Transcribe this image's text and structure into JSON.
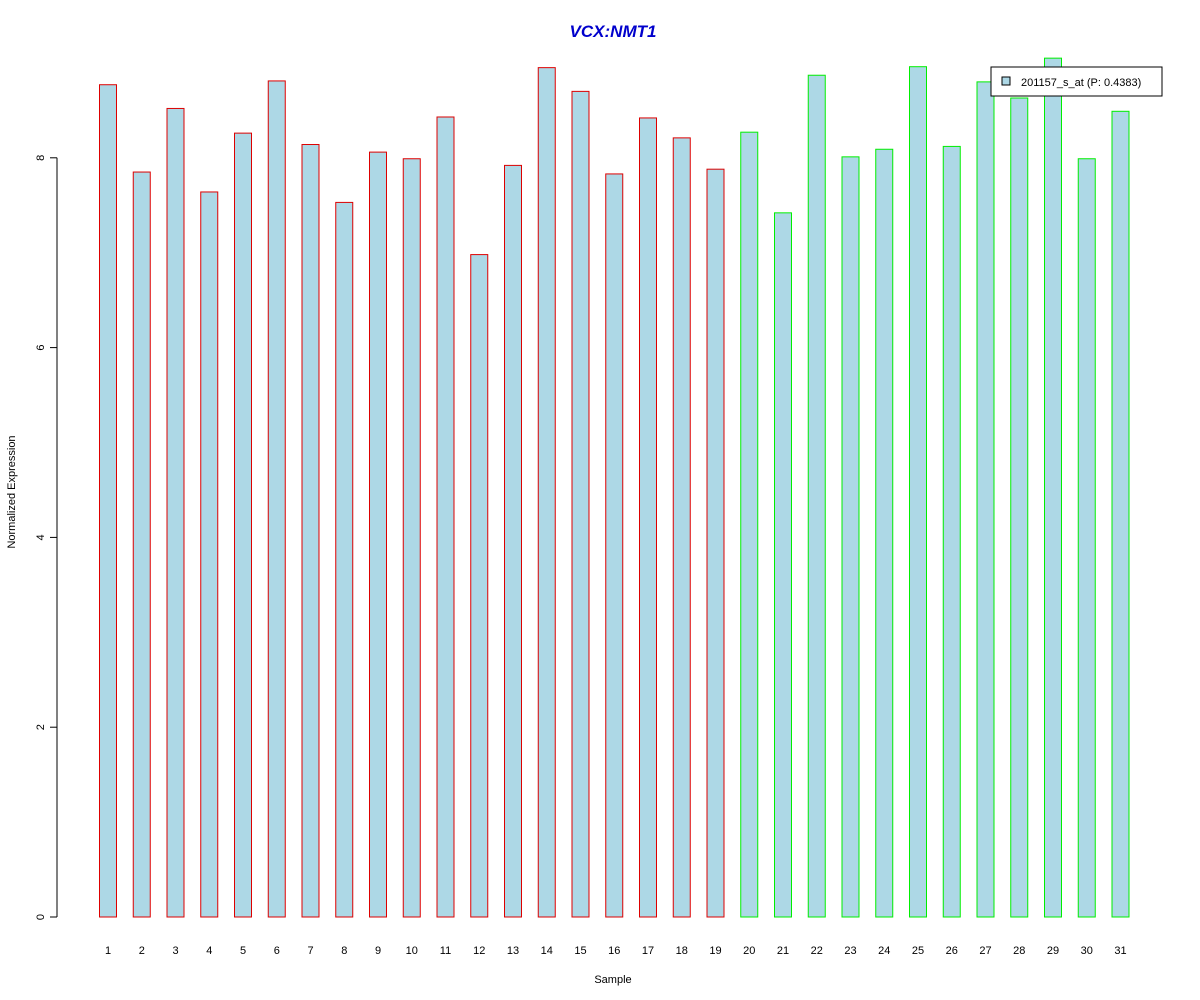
{
  "chart_data": {
    "type": "bar",
    "title": "VCX:NMT1",
    "xlabel": "Sample",
    "ylabel": "Normalized Expression",
    "categories": [
      "1",
      "2",
      "3",
      "4",
      "5",
      "6",
      "7",
      "8",
      "9",
      "10",
      "11",
      "12",
      "13",
      "14",
      "15",
      "16",
      "17",
      "18",
      "19",
      "20",
      "21",
      "22",
      "23",
      "24",
      "25",
      "26",
      "27",
      "28",
      "29",
      "30",
      "31"
    ],
    "series": [
      {
        "name": "201157_s_at (P: 0.4383)",
        "values": [
          8.77,
          7.85,
          8.52,
          7.64,
          8.26,
          8.81,
          8.14,
          7.53,
          8.06,
          7.99,
          8.43,
          6.98,
          7.92,
          8.95,
          8.7,
          7.83,
          8.42,
          8.21,
          7.88,
          8.27,
          7.42,
          8.87,
          8.01,
          8.09,
          8.96,
          8.12,
          8.8,
          8.63,
          9.05,
          7.99,
          8.49
        ]
      }
    ],
    "groups": [
      {
        "samples": [
          1,
          19
        ],
        "border_color": "#dd0000"
      },
      {
        "samples": [
          20,
          31
        ],
        "border_color": "#00ee00"
      }
    ],
    "bar_fill": "#add8e6",
    "title_color": "#0000cc",
    "y_ticks": [
      0,
      2,
      4,
      6,
      8
    ],
    "ylim": [
      0,
      9.3
    ],
    "grid": false,
    "legend_position": "top-right"
  }
}
